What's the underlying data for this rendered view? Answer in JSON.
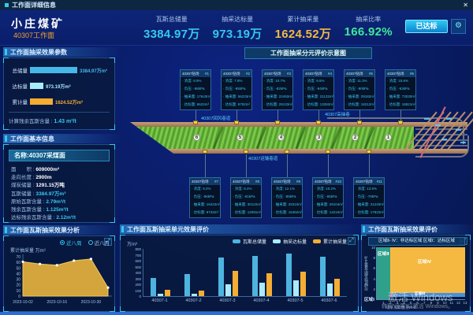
{
  "window": {
    "title": "工作面详细信息",
    "close_icon": "✕"
  },
  "icons": {
    "expand": "⤢",
    "gear": "⚙"
  },
  "header": {
    "mine_name": "小庄煤矿",
    "face_name": "40307工作面",
    "stats": [
      {
        "label": "瓦斯总储量",
        "value": "3384.97万",
        "color": "#35c8f0"
      },
      {
        "label": "抽采达标量",
        "value": "973.19万",
        "color": "#35c8f0"
      },
      {
        "label": "累计抽采量",
        "value": "1624.52万",
        "color": "#f5b942"
      },
      {
        "label": "抽采比率",
        "value": "166.92%",
        "color": "#3ee89a"
      }
    ],
    "status_button_label": "已达标"
  },
  "params_panel": {
    "title": "工作面抽采效果参数",
    "chart_data": {
      "type": "bar",
      "orientation": "horizontal",
      "categories": [
        "总储量",
        "达标量",
        "累计量"
      ],
      "values": [
        3384.97,
        973.19,
        1624.52
      ],
      "value_labels": [
        "3384.97万m³",
        "973.19万m³",
        "1624.52万m³"
      ],
      "colors": [
        "#45b8e8",
        "#a8ecfb",
        "#f5ad33"
      ],
      "xlim": [
        0,
        3500
      ]
    },
    "footer_label": "计算残余瓦斯含量 : ",
    "footer_value": "1.43 m³/t"
  },
  "info_panel": {
    "title": "工作面基本信息",
    "name_row": "名称:40307采煤面",
    "rows": [
      {
        "label": "面　　积",
        "value": "609000m²",
        "color": "#ffffff"
      },
      {
        "label": "走向长度",
        "value": "2900m",
        "color": "#ffffff"
      },
      {
        "label": "煤炭储量",
        "value": "1291.15万吨",
        "color": "#ffffff"
      },
      {
        "label": "瓦斯储量",
        "value": "3384.97万m³",
        "color": "#35c8f0"
      },
      {
        "label": "原始瓦斯含量",
        "value": "2.79m³/t",
        "color": "#35c8f0"
      },
      {
        "label": "残余瓦斯含量",
        "value": "1.125m³/t",
        "color": "#35c8f0"
      },
      {
        "label": "达标残余瓦斯含量",
        "value": "2.12m³/t",
        "color": "#35c8f0"
      }
    ]
  },
  "analysis_panel": {
    "title": "工作面瓦斯抽采效果分析",
    "radios": [
      {
        "label": "近八周",
        "selected": true
      },
      {
        "label": "近八月",
        "selected": false
      }
    ],
    "chart_data": {
      "type": "area",
      "ylabel": "累计抽采量 万m³",
      "ylim": [
        0,
        70
      ],
      "yticks": [
        0,
        10,
        20,
        30,
        40,
        50,
        60,
        70
      ],
      "x_tick_labels": [
        "2023-10-02",
        "2023-10-16",
        "2023-10-30"
      ],
      "values": [
        61,
        57,
        55,
        63,
        66,
        15
      ],
      "fill_color": "#e6b23c",
      "stroke_color": "#f0c860"
    }
  },
  "diagram": {
    "title": "工作面抽采分元评价示意图",
    "roadway_top_label": "40307回风巷道",
    "roadway_bottom_label": "40307运输巷道",
    "roadway_right_label": "40307高抽巷",
    "sections": [
      "6",
      "5",
      "4",
      "3",
      "2",
      "1"
    ],
    "top_units": [
      {
        "name": "40307钻场",
        "tag": "#1",
        "rows": [
          "浓度: 8.9%",
          "负压: -98kPa",
          "抽采量: 17643m³",
          "达标量: 9622m³"
        ]
      },
      {
        "name": "40307钻场",
        "tag": "#2",
        "rows": [
          "浓度: 7.8%",
          "负压: -95kPa",
          "抽采量: 56233m³",
          "达标量: 9782m³"
        ]
      },
      {
        "name": "40307钻场",
        "tag": "#3",
        "rows": [
          "浓度: 10.7%",
          "负压: -82kPa",
          "抽采量: 22492m³",
          "达标量: 29133m³"
        ]
      },
      {
        "name": "40307钻场",
        "tag": "#4",
        "rows": [
          "浓度: 9.5%",
          "负压: -94kPa",
          "抽采量: 21132m³",
          "达标量: 13282m³"
        ]
      },
      {
        "name": "40307钻场",
        "tag": "#5",
        "rows": [
          "浓度: 11.3%",
          "负压: -90kPa",
          "抽采量: 29182m³",
          "达标量: 18212m³"
        ]
      },
      {
        "name": "40307钻场",
        "tag": "#6",
        "rows": [
          "浓度: 15.6%",
          "负压: -63kPa",
          "抽采量: 73030m³",
          "达标量: 18821m³"
        ]
      }
    ],
    "bottom_units": [
      {
        "name": "40307钻场",
        "tag": "#7",
        "rows": [
          "浓度: 9.2%",
          "负压: -96kPa",
          "抽采量: 19422m³",
          "达标量: 8733m³"
        ]
      },
      {
        "name": "40307钻场",
        "tag": "#8",
        "rows": [
          "浓度: 8.4%",
          "负压: -91kPa",
          "抽采量: 30122m³",
          "达标量: 12091m³"
        ]
      },
      {
        "name": "40307钻场",
        "tag": "#9",
        "rows": [
          "浓度: 12.1%",
          "负压: -88kPa",
          "抽采量: 25310m³",
          "达标量: 16452m³"
        ]
      },
      {
        "name": "40307钻场",
        "tag": "#10",
        "rows": [
          "浓度: 10.2%",
          "负压: -85kPa",
          "抽采量: 28104m³",
          "达标量: 14210m³"
        ]
      },
      {
        "name": "40307钻场",
        "tag": "#11",
        "rows": [
          "浓度: 13.5%",
          "负压: -79kPa",
          "抽采量: 31240m³",
          "达标量: 17822m³"
        ]
      }
    ]
  },
  "unit_eval_panel": {
    "title": "工作面瓦斯抽采单元效果评价",
    "chart_data": {
      "type": "bar",
      "ylabel": "万m³",
      "ylim": [
        0,
        800
      ],
      "yticks": [
        0,
        100,
        200,
        300,
        400,
        500,
        600,
        700,
        800
      ],
      "categories": [
        "40307-1",
        "40307-2",
        "40307-3",
        "40307-4",
        "40307-5",
        "40307-6"
      ],
      "series": [
        {
          "name": "瓦斯总储量",
          "color": "#4db4e0",
          "values": [
            310,
            370,
            650,
            680,
            720,
            665
          ]
        },
        {
          "name": "抽采达标量",
          "color": "#a8ecfb",
          "values": [
            40,
            35,
            200,
            225,
            265,
            215
          ]
        },
        {
          "name": "累计抽采量",
          "color": "#f5ad33",
          "values": [
            110,
            100,
            430,
            390,
            420,
            300
          ]
        }
      ],
      "legend_position": "top-right"
    }
  },
  "effect_eval_panel": {
    "title": "工作面瓦斯抽采效果评价",
    "annotation": "区域Ⅱ- Ⅳ：非达标区域 区域Ⅰ：达标区域",
    "chart_data": {
      "type": "scatter",
      "ylabel": "可解吸瓦斯含量m³/t",
      "xlabel": "残余瓦斯含量m³/t",
      "ylim": [
        0,
        10
      ],
      "yticks": [
        2,
        4,
        6,
        8,
        10
      ],
      "xticks": [
        1,
        2,
        3,
        4,
        5,
        6,
        7,
        8,
        9,
        10,
        11,
        12,
        13
      ],
      "regions": [
        {
          "name": "区域Ⅱ",
          "color": "#2fa08a"
        },
        {
          "name": "区域Ⅳ",
          "color": "#f5b942"
        },
        {
          "name": "区域Ⅲ",
          "color": "#4a90d9"
        },
        {
          "name": "区域Ⅰ",
          "color": "transparent"
        }
      ],
      "point": {
        "x": 2,
        "y": 0.6,
        "color": "#e06ab0"
      }
    }
  },
  "watermark": {
    "line1": "激活 Windows",
    "line2": "转到“设置”以激活 Windows。"
  }
}
